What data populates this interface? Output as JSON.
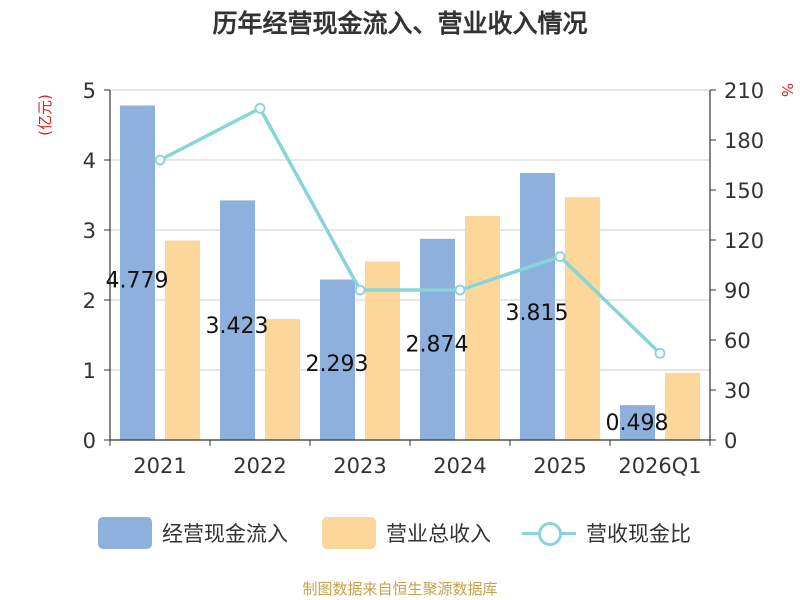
{
  "chart_data": {
    "type": "bar",
    "title": "历年经营现金流入、营业收入情况",
    "categories": [
      "2021",
      "2022",
      "2023",
      "2024",
      "2025",
      "2026Q1"
    ],
    "series": [
      {
        "name": "经营现金流入",
        "type": "bar",
        "axis": "left",
        "color": "#8eb0dc",
        "values": [
          4.779,
          3.423,
          2.293,
          2.874,
          3.815,
          0.498
        ],
        "data_labels": [
          "4.779",
          "3.423",
          "2.293",
          "2.874",
          "3.815",
          "0.498"
        ]
      },
      {
        "name": "营业总收入",
        "type": "bar",
        "axis": "left",
        "color": "#fdd799",
        "values": [
          2.85,
          1.73,
          2.55,
          3.2,
          3.47,
          0.96
        ]
      },
      {
        "name": "营收现金比",
        "type": "line",
        "axis": "right",
        "color": "#88d4d9",
        "values": [
          168,
          199,
          90,
          90,
          110,
          52
        ]
      }
    ],
    "y_left": {
      "label": "(亿元)",
      "ylim": [
        0,
        5
      ],
      "ticks": [
        "0",
        "1",
        "2",
        "3",
        "4",
        "5"
      ]
    },
    "y_right": {
      "label": "%",
      "ylim": [
        0,
        210
      ],
      "ticks": [
        "0",
        "30",
        "60",
        "90",
        "120",
        "150",
        "180",
        "210"
      ]
    },
    "grid": true,
    "legend_position": "bottom"
  },
  "legend": {
    "items": [
      "经营现金流入",
      "营业总收入",
      "营收现金比"
    ]
  },
  "source_note": "制图数据来自恒生聚源数据库"
}
